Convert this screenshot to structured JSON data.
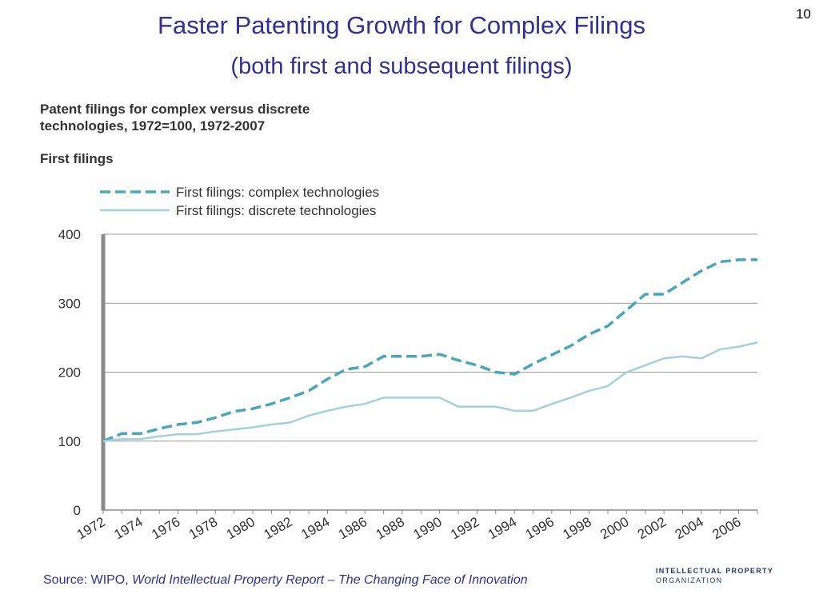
{
  "slide": {
    "title": "Faster Patenting Growth for Complex Filings",
    "subtitle": "(both first and subsequent filings)",
    "page_number": "10"
  },
  "figure": {
    "title_line1": "Patent filings for complex versus discrete",
    "title_line2": "technologies, 1972=100, 1972-2007",
    "subtitle": "First filings"
  },
  "source": {
    "prefix": "Source: WIPO, ",
    "title": "World Intellectual Property Report – The Changing Face of Innovation"
  },
  "logo": {
    "line1": "INTELLECTUAL PROPERTY",
    "line2": "ORGANIZATION"
  },
  "chart_data": {
    "type": "line",
    "title": "Patent filings for complex versus discrete technologies, 1972=100, 1972-2007",
    "subtitle": "First filings",
    "x": [
      1972,
      1973,
      1974,
      1975,
      1976,
      1977,
      1978,
      1979,
      1980,
      1981,
      1982,
      1983,
      1984,
      1985,
      1986,
      1987,
      1988,
      1989,
      1990,
      1991,
      1992,
      1993,
      1994,
      1995,
      1996,
      1997,
      1998,
      1999,
      2000,
      2001,
      2002,
      2003,
      2004,
      2005,
      2006,
      2007
    ],
    "x_tick_labels": [
      "1972",
      "1974",
      "1976",
      "1978",
      "1980",
      "1982",
      "1984",
      "1986",
      "1988",
      "1990",
      "1992",
      "1994",
      "1996",
      "1998",
      "2000",
      "2002",
      "2004",
      "2006"
    ],
    "ylim": [
      0,
      400
    ],
    "y_ticks": [
      0,
      100,
      200,
      300,
      400
    ],
    "grid": true,
    "legend_position": "top-left",
    "series": [
      {
        "name": "First filings: complex technologies",
        "style": "dashed",
        "color": "#4aa6b8",
        "values": [
          100,
          111,
          111,
          118,
          124,
          127,
          134,
          143,
          147,
          154,
          163,
          173,
          190,
          204,
          208,
          223,
          223,
          223,
          226,
          217,
          210,
          200,
          197,
          212,
          225,
          238,
          255,
          267,
          290,
          313,
          313,
          330,
          347,
          360,
          363,
          363
        ]
      },
      {
        "name": "First filings: discrete technologies",
        "style": "solid",
        "color": "#a3d0dc",
        "values": [
          100,
          103,
          103,
          107,
          110,
          110,
          114,
          117,
          120,
          124,
          127,
          137,
          144,
          150,
          154,
          163,
          163,
          163,
          163,
          150,
          150,
          150,
          144,
          144,
          154,
          163,
          173,
          180,
          200,
          210,
          220,
          223,
          220,
          233,
          237,
          243
        ]
      }
    ]
  }
}
